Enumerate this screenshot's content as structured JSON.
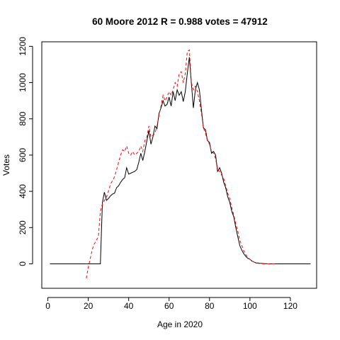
{
  "chart_data": {
    "type": "line",
    "title": "60 Moore 2012 R = 0.988 votes = 47912",
    "xlabel": "Age in 2020",
    "ylabel": "Votes",
    "xlim": [
      -3,
      133
    ],
    "ylim": [
      -135,
      1225
    ],
    "xticks": [
      0,
      20,
      40,
      60,
      80,
      100,
      120
    ],
    "yticks": [
      0,
      200,
      400,
      600,
      800,
      1000,
      1200
    ],
    "grid": false,
    "legend": "none",
    "series": [
      {
        "style": "solid",
        "color": "#000000",
        "x": [
          1,
          26,
          27,
          28,
          29,
          30,
          31,
          32,
          33,
          34,
          35,
          36,
          37,
          38,
          39,
          40,
          41,
          42,
          43,
          44,
          45,
          46,
          47,
          48,
          49,
          50,
          51,
          52,
          53,
          54,
          55,
          56,
          57,
          58,
          59,
          60,
          61,
          62,
          63,
          64,
          65,
          66,
          67,
          68,
          69,
          70,
          71,
          72,
          73,
          74,
          75,
          76,
          77,
          78,
          79,
          80,
          81,
          82,
          83,
          84,
          85,
          86,
          87,
          88,
          89,
          90,
          91,
          92,
          93,
          94,
          95,
          96,
          97,
          98,
          99,
          100,
          101,
          102,
          103,
          104,
          105,
          106,
          107,
          108,
          109,
          110,
          111,
          112,
          113,
          130
        ],
        "y": [
          0,
          0,
          340,
          395,
          350,
          360,
          375,
          385,
          390,
          420,
          430,
          450,
          465,
          475,
          530,
          495,
          500,
          505,
          510,
          520,
          560,
          610,
          570,
          620,
          680,
          735,
          660,
          700,
          760,
          745,
          830,
          860,
          900,
          870,
          880,
          920,
          870,
          950,
          900,
          960,
          930,
          950,
          895,
          950,
          1050,
          1140,
          1000,
          860,
          960,
          1000,
          960,
          850,
          750,
          740,
          680,
          670,
          610,
          620,
          600,
          510,
          530,
          500,
          450,
          420,
          370,
          340,
          290,
          260,
          200,
          150,
          100,
          75,
          55,
          40,
          30,
          25,
          15,
          10,
          5,
          5,
          3,
          2,
          1,
          1,
          0,
          0,
          0,
          0,
          0,
          0
        ]
      },
      {
        "style": "dashed",
        "color": "#ff0000",
        "x": [
          19,
          20,
          21,
          22,
          23,
          24,
          25,
          26,
          27,
          28,
          29,
          30,
          31,
          32,
          33,
          34,
          35,
          36,
          37,
          38,
          39,
          40,
          41,
          42,
          43,
          44,
          45,
          46,
          47,
          48,
          49,
          50,
          51,
          52,
          53,
          54,
          55,
          56,
          57,
          58,
          59,
          60,
          61,
          62,
          63,
          64,
          65,
          66,
          67,
          68,
          69,
          70,
          71,
          72,
          73,
          74,
          75,
          76,
          77,
          78,
          79,
          80,
          81,
          82,
          83,
          84,
          85,
          86,
          87,
          88,
          89,
          90,
          91,
          92,
          93,
          94,
          95,
          96,
          97,
          98,
          99,
          100,
          101,
          102,
          103,
          104,
          105,
          106,
          107,
          108,
          109,
          110,
          111,
          112,
          113
        ],
        "y": [
          -80,
          -20,
          30,
          80,
          110,
          130,
          150,
          290,
          330,
          350,
          370,
          400,
          440,
          460,
          480,
          520,
          560,
          600,
          630,
          620,
          650,
          610,
          600,
          620,
          600,
          610,
          620,
          650,
          620,
          680,
          700,
          760,
          700,
          710,
          720,
          760,
          820,
          870,
          930,
          900,
          920,
          950,
          930,
          960,
          1000,
          980,
          1050,
          1060,
          1000,
          1050,
          1170,
          1180,
          1000,
          960,
          980,
          950,
          900,
          830,
          750,
          720,
          680,
          660,
          620,
          610,
          580,
          520,
          510,
          490,
          470,
          430,
          390,
          360,
          310,
          270,
          220,
          180,
          130,
          100,
          70,
          50,
          35,
          25,
          15,
          10,
          5,
          3,
          2,
          1,
          0,
          0,
          0,
          0,
          0,
          0,
          0
        ]
      }
    ]
  }
}
